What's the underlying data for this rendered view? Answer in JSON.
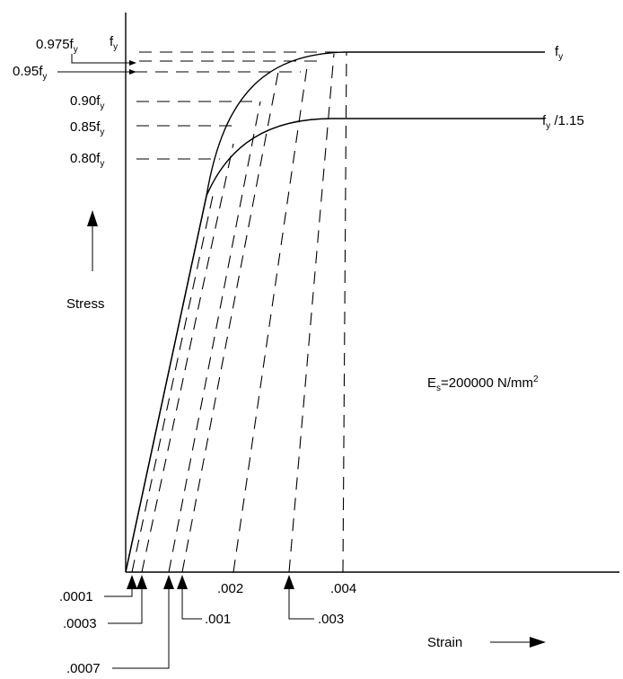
{
  "diagram": {
    "y_axis_label": "Stress",
    "x_axis_label": "Strain",
    "modulus_label": {
      "main": "E",
      "sub": "s",
      "rest": "=200000 N/mm",
      "sup": "2"
    },
    "curve_labels": [
      {
        "main": "f",
        "sub": "y",
        "rest": ""
      },
      {
        "main": "f",
        "sub": "y",
        "rest": " /1.15"
      }
    ],
    "stress_levels": [
      {
        "main": "f",
        "sub": "y",
        "rest": ""
      },
      {
        "main": "0.975f",
        "sub": "y",
        "rest": ""
      },
      {
        "main": "0.95f",
        "sub": "y",
        "rest": ""
      },
      {
        "main": "0.90f",
        "sub": "y",
        "rest": ""
      },
      {
        "main": "0.85f",
        "sub": "y",
        "rest": ""
      },
      {
        "main": "0.80f",
        "sub": "y",
        "rest": ""
      }
    ],
    "strain_ticks_above": [
      ".002",
      ".004"
    ],
    "strain_markers": [
      ".0001",
      ".0003",
      ".0007",
      ".001",
      ".003"
    ]
  }
}
